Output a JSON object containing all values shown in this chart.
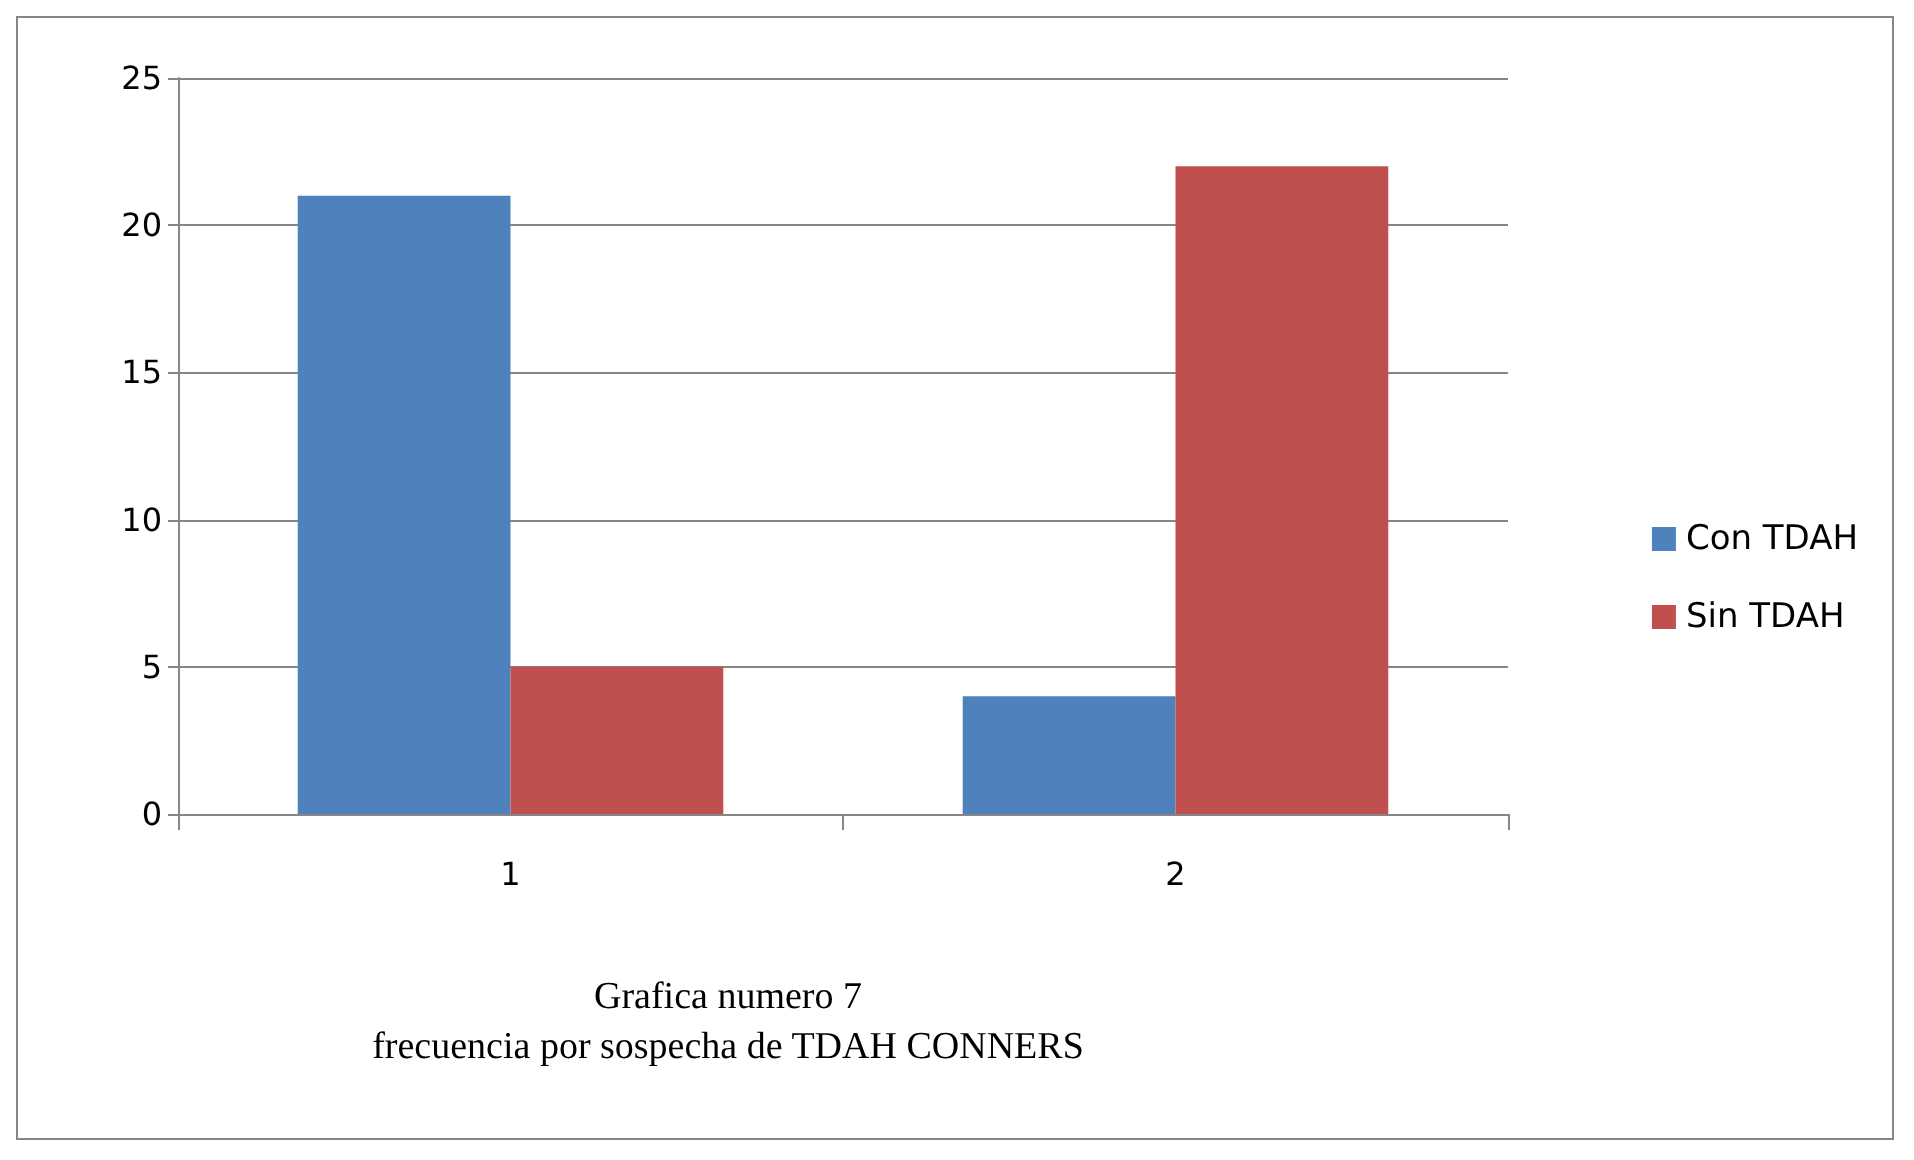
{
  "chart_data": {
    "type": "bar",
    "title": "Grafica numero 7\nfrecuencia por sospecha de TDAH CONNERS",
    "categories": [
      "1",
      "2"
    ],
    "series": [
      {
        "name": "Con TDAH",
        "color": "#4f81bd",
        "values": [
          21,
          4
        ]
      },
      {
        "name": "Sin TDAH",
        "color": "#c0504d",
        "values": [
          5,
          22
        ]
      }
    ],
    "ylim": [
      0,
      25
    ],
    "yticks": [
      0,
      5,
      10,
      15,
      20,
      25
    ],
    "grid": "y",
    "legend": "right"
  }
}
